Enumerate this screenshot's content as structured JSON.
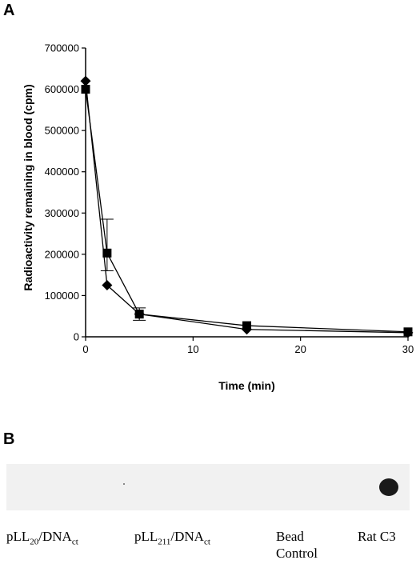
{
  "panel_a_label": "A",
  "panel_b_label": "B",
  "chart_data": {
    "type": "line",
    "xlabel": "Time (min)",
    "ylabel": "Radioactivity remaining in blood (cpm)",
    "xlim": [
      0,
      30
    ],
    "ylim": [
      0,
      700000
    ],
    "xticks": [
      0,
      10,
      20,
      30
    ],
    "yticks": [
      0,
      100000,
      200000,
      300000,
      400000,
      500000,
      600000,
      700000
    ],
    "ytick_labels": [
      "0",
      "100000",
      "200000",
      "300000",
      "400000",
      "500000",
      "600000",
      "700000"
    ],
    "grid": false,
    "series": [
      {
        "marker": "diamond",
        "color": "#000000",
        "x": [
          0,
          2,
          5,
          15,
          30
        ],
        "y": [
          620000,
          125000,
          55000,
          18000,
          10000
        ]
      },
      {
        "marker": "square",
        "color": "#000000",
        "x": [
          0,
          2,
          5,
          15,
          30
        ],
        "y": [
          600000,
          203000,
          55000,
          27000,
          12000
        ],
        "error": [
          null,
          [
            160000,
            285000
          ],
          [
            40000,
            70000
          ],
          null,
          null
        ]
      }
    ]
  },
  "blot": {
    "lanes": [
      {
        "main": "pLL",
        "sub": "20",
        "rest": "/DNA",
        "sub2": "ct"
      },
      {
        "main": "pLL",
        "sub": "211",
        "rest": "/DNA",
        "sub2": "ct"
      },
      {
        "line1": "Bead",
        "line2": "Control"
      },
      {
        "line1": "Rat C3"
      }
    ]
  }
}
